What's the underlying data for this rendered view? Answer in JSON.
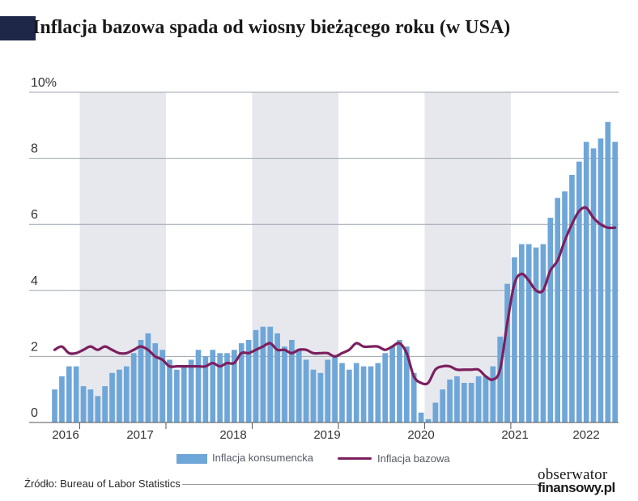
{
  "title": "Inflacja bazowa spada od wiosny bieżącego roku (w USA)",
  "legend": {
    "bars": "Inflacja konsumencka",
    "line": "Inflacja bazowa"
  },
  "source": "Źródło: Bureau of Labor Statistics",
  "logo": {
    "line1": "obserwator",
    "line2": "finansowy.pl"
  },
  "colors": {
    "bars": "#6fa6d8",
    "line": "#7c1f5e",
    "band": "#e6e8ee",
    "title_mark": "#1f2749"
  },
  "chart_data": {
    "type": "bar",
    "ylim": [
      0,
      10
    ],
    "y_ticks": [
      "0",
      "2",
      "4",
      "6",
      "8",
      "10%"
    ],
    "x_labels": [
      "2016",
      "2017",
      "2018",
      "2019",
      "2020",
      "2021",
      "2022"
    ],
    "shaded_years": [
      "2017",
      "2019",
      "2021"
    ],
    "grid": "horizontal",
    "legend_position": "bottom",
    "series": [
      {
        "name": "Inflacja konsumencka",
        "type": "bar",
        "values": [
          1.0,
          1.4,
          1.7,
          1.7,
          1.1,
          1.0,
          0.8,
          1.1,
          1.5,
          1.6,
          1.7,
          2.1,
          2.5,
          2.7,
          2.4,
          2.2,
          1.9,
          1.6,
          1.7,
          1.9,
          2.2,
          2.0,
          2.2,
          2.1,
          2.1,
          2.2,
          2.4,
          2.5,
          2.8,
          2.9,
          2.9,
          2.7,
          2.3,
          2.5,
          2.2,
          1.9,
          1.6,
          1.5,
          1.9,
          2.0,
          1.8,
          1.6,
          1.8,
          1.7,
          1.7,
          1.8,
          2.1,
          2.3,
          2.5,
          2.3,
          1.5,
          0.3,
          0.1,
          0.6,
          1.0,
          1.3,
          1.4,
          1.2,
          1.2,
          1.4,
          1.4,
          1.7,
          2.6,
          4.2,
          5.0,
          5.4,
          5.4,
          5.3,
          5.4,
          6.2,
          6.8,
          7.0,
          7.5,
          7.9,
          8.5,
          8.3,
          8.6,
          9.1,
          8.5
        ]
      },
      {
        "name": "Inflacja bazowa",
        "type": "line",
        "values": [
          2.2,
          2.3,
          2.1,
          2.1,
          2.2,
          2.3,
          2.2,
          2.3,
          2.2,
          2.1,
          2.1,
          2.2,
          2.3,
          2.2,
          2.0,
          1.9,
          1.7,
          1.7,
          1.7,
          1.7,
          1.7,
          1.7,
          1.8,
          1.7,
          1.8,
          1.8,
          2.1,
          2.1,
          2.2,
          2.3,
          2.4,
          2.2,
          2.2,
          2.1,
          2.2,
          2.2,
          2.1,
          2.1,
          2.1,
          2.0,
          2.1,
          2.2,
          2.4,
          2.3,
          2.3,
          2.3,
          2.2,
          2.3,
          2.4,
          2.1,
          1.4,
          1.2,
          1.2,
          1.6,
          1.7,
          1.7,
          1.6,
          1.6,
          1.6,
          1.6,
          1.4,
          1.3,
          1.6,
          3.0,
          4.2,
          4.5,
          4.3,
          4.0,
          4.0,
          4.6,
          4.9,
          5.5,
          6.0,
          6.4,
          6.5,
          6.2,
          6.0,
          5.9,
          5.9
        ]
      }
    ]
  }
}
